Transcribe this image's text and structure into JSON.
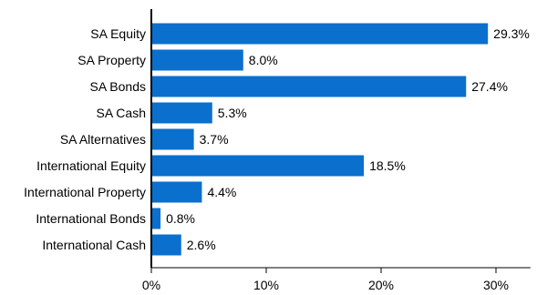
{
  "chart_data": {
    "type": "bar",
    "orientation": "horizontal",
    "categories": [
      "SA Equity",
      "SA Property",
      "SA Bonds",
      "SA Cash",
      "SA Alternatives",
      "International Equity",
      "International Property",
      "International Bonds",
      "International Cash"
    ],
    "values": [
      29.3,
      8.0,
      27.4,
      5.3,
      3.7,
      18.5,
      4.4,
      0.8,
      2.6
    ],
    "data_labels": [
      "29.3%",
      "8.0%",
      "27.4%",
      "5.3%",
      "3.7%",
      "18.5%",
      "4.4%",
      "0.8%",
      "2.6%"
    ],
    "xlim": [
      0,
      33
    ],
    "x_ticks": [
      0,
      10,
      20,
      30
    ],
    "x_tick_labels": [
      "0%",
      "10%",
      "20%",
      "30%"
    ],
    "grid": false,
    "legend": "none",
    "bar_color": "#0b6fce"
  }
}
